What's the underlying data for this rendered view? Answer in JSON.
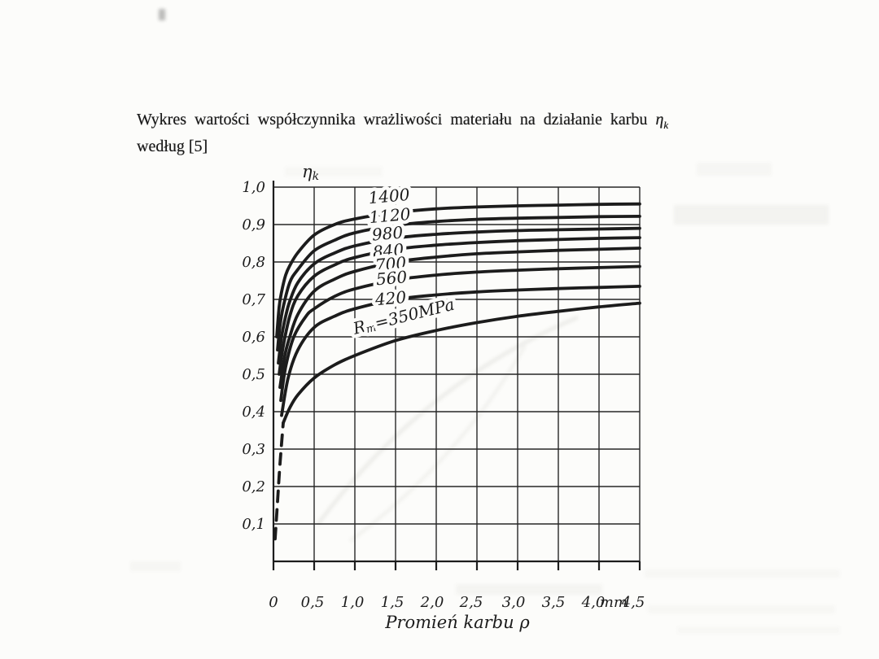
{
  "colors": {
    "ink": "#1c1c1c",
    "grid": "#262626",
    "paper": "#fcfcfa",
    "ghost": "#bdbdb6"
  },
  "title": {
    "line1": "Wykres wartości współczynnika wrażliwości materiału na działanie karbu",
    "symbol": "η",
    "symbol_sub": "k",
    "line2": "według [5]"
  },
  "chart_data": {
    "type": "line",
    "title": "",
    "xlabel": "Promień karbu ρ",
    "ylabel": "ηk",
    "ylabel_main": "η",
    "ylabel_sub": "k",
    "x_unit": "mm",
    "xlim": [
      0,
      4.5
    ],
    "ylim": [
      0,
      1.0
    ],
    "grid": true,
    "grid_step_x": 0.5,
    "grid_step_y": 0.1,
    "legend_position": "labels-on-curves",
    "y_tick_labels": [
      {
        "text": "1,0",
        "v": 1.0
      },
      {
        "text": "0,9",
        "v": 0.9
      },
      {
        "text": "0,8",
        "v": 0.8
      },
      {
        "text": "0,7",
        "v": 0.7
      },
      {
        "text": "0,6",
        "v": 0.6
      },
      {
        "text": "0,5",
        "v": 0.5
      },
      {
        "text": "0,4",
        "v": 0.4
      },
      {
        "text": "0,3",
        "v": 0.3
      },
      {
        "text": "0,2",
        "v": 0.2
      },
      {
        "text": "0,1",
        "v": 0.1
      }
    ],
    "x_tick_labels": [
      {
        "text": "0",
        "x": 0.0
      },
      {
        "text": "0,5",
        "x": 0.48
      },
      {
        "text": "1,0",
        "x": 0.97
      },
      {
        "text": "1,5",
        "x": 1.46
      },
      {
        "text": "2,0",
        "x": 1.95
      },
      {
        "text": "2,5",
        "x": 2.43
      },
      {
        "text": "3,0",
        "x": 2.95
      },
      {
        "text": "3,5",
        "x": 3.44
      },
      {
        "text": "4,0",
        "x": 3.93
      },
      {
        "text": "mm",
        "x": 4.18
      },
      {
        "text": "4,5",
        "x": 4.42
      }
    ],
    "series": [
      {
        "name": "Rm=1400",
        "label": "1400",
        "label_at": [
          1.42,
          0.976
        ],
        "label_rotate": -5,
        "points": [
          [
            0.04,
            0.6
          ],
          [
            0.07,
            0.68
          ],
          [
            0.1,
            0.72
          ],
          [
            0.15,
            0.765
          ],
          [
            0.2,
            0.79
          ],
          [
            0.3,
            0.825
          ],
          [
            0.5,
            0.872
          ],
          [
            0.75,
            0.9
          ],
          [
            1.0,
            0.915
          ],
          [
            1.5,
            0.932
          ],
          [
            2.0,
            0.942
          ],
          [
            2.5,
            0.947
          ],
          [
            3.0,
            0.95
          ],
          [
            3.5,
            0.952
          ],
          [
            4.0,
            0.954
          ],
          [
            4.5,
            0.955
          ]
        ]
      },
      {
        "name": "Rm=1120",
        "label": "1120",
        "label_at": [
          1.43,
          0.924
        ],
        "label_rotate": -5,
        "points": [
          [
            0.05,
            0.565
          ],
          [
            0.08,
            0.63
          ],
          [
            0.12,
            0.68
          ],
          [
            0.2,
            0.745
          ],
          [
            0.3,
            0.78
          ],
          [
            0.5,
            0.83
          ],
          [
            0.75,
            0.858
          ],
          [
            1.0,
            0.878
          ],
          [
            1.5,
            0.898
          ],
          [
            2.0,
            0.908
          ],
          [
            2.5,
            0.914
          ],
          [
            3.0,
            0.917
          ],
          [
            3.5,
            0.919
          ],
          [
            4.0,
            0.921
          ],
          [
            4.5,
            0.922
          ]
        ]
      },
      {
        "name": "Rm=980",
        "label": "980",
        "label_at": [
          1.4,
          0.876
        ],
        "label_rotate": -5,
        "points": [
          [
            0.06,
            0.53
          ],
          [
            0.1,
            0.6
          ],
          [
            0.15,
            0.655
          ],
          [
            0.2,
            0.695
          ],
          [
            0.3,
            0.745
          ],
          [
            0.5,
            0.795
          ],
          [
            0.75,
            0.824
          ],
          [
            1.0,
            0.843
          ],
          [
            1.5,
            0.864
          ],
          [
            2.0,
            0.874
          ],
          [
            2.5,
            0.88
          ],
          [
            3.0,
            0.884
          ],
          [
            3.5,
            0.886
          ],
          [
            4.0,
            0.888
          ],
          [
            4.5,
            0.89
          ]
        ]
      },
      {
        "name": "Rm=840",
        "label": "840",
        "label_at": [
          1.41,
          0.83
        ],
        "label_rotate": -5,
        "points": [
          [
            0.07,
            0.5
          ],
          [
            0.12,
            0.575
          ],
          [
            0.2,
            0.655
          ],
          [
            0.3,
            0.71
          ],
          [
            0.5,
            0.762
          ],
          [
            0.75,
            0.792
          ],
          [
            1.0,
            0.812
          ],
          [
            1.5,
            0.834
          ],
          [
            2.0,
            0.845
          ],
          [
            2.5,
            0.852
          ],
          [
            3.0,
            0.857
          ],
          [
            3.5,
            0.86
          ],
          [
            4.0,
            0.863
          ],
          [
            4.5,
            0.865
          ]
        ]
      },
      {
        "name": "Rm=700",
        "label": "700",
        "label_at": [
          1.44,
          0.795
        ],
        "label_rotate": -5,
        "points": [
          [
            0.08,
            0.465
          ],
          [
            0.14,
            0.55
          ],
          [
            0.2,
            0.6
          ],
          [
            0.3,
            0.66
          ],
          [
            0.5,
            0.722
          ],
          [
            0.75,
            0.754
          ],
          [
            1.0,
            0.775
          ],
          [
            1.5,
            0.8
          ],
          [
            2.0,
            0.813
          ],
          [
            2.5,
            0.822
          ],
          [
            3.0,
            0.827
          ],
          [
            3.5,
            0.831
          ],
          [
            4.0,
            0.834
          ],
          [
            4.5,
            0.837
          ]
        ]
      },
      {
        "name": "Rm=560",
        "label": "560",
        "label_at": [
          1.45,
          0.757
        ],
        "label_rotate": -5,
        "points": [
          [
            0.09,
            0.43
          ],
          [
            0.15,
            0.52
          ],
          [
            0.25,
            0.6
          ],
          [
            0.4,
            0.655
          ],
          [
            0.5,
            0.675
          ],
          [
            0.75,
            0.708
          ],
          [
            1.0,
            0.728
          ],
          [
            1.5,
            0.752
          ],
          [
            2.0,
            0.765
          ],
          [
            2.5,
            0.773
          ],
          [
            3.0,
            0.778
          ],
          [
            3.5,
            0.782
          ],
          [
            4.0,
            0.785
          ],
          [
            4.5,
            0.788
          ]
        ]
      },
      {
        "name": "Rm=420",
        "label": "420",
        "label_at": [
          1.44,
          0.703
        ],
        "label_rotate": -5,
        "points": [
          [
            0.1,
            0.39
          ],
          [
            0.18,
            0.49
          ],
          [
            0.3,
            0.565
          ],
          [
            0.5,
            0.625
          ],
          [
            0.75,
            0.655
          ],
          [
            1.0,
            0.675
          ],
          [
            1.5,
            0.7
          ],
          [
            2.0,
            0.712
          ],
          [
            2.5,
            0.72
          ],
          [
            3.0,
            0.725
          ],
          [
            3.5,
            0.729
          ],
          [
            4.0,
            0.732
          ],
          [
            4.5,
            0.735
          ]
        ]
      },
      {
        "name": "Rm=350MPa",
        "label_rm_main": "R",
        "label_rm_sub": "m",
        "label_rm_rest": "=350MPa",
        "label_at": [
          1.6,
          0.655
        ],
        "label_rotate": -14,
        "lead_dashed": [
          [
            0.02,
            0.06
          ],
          [
            0.05,
            0.16
          ],
          [
            0.08,
            0.26
          ],
          [
            0.12,
            0.37
          ]
        ],
        "points": [
          [
            0.12,
            0.37
          ],
          [
            0.2,
            0.41
          ],
          [
            0.3,
            0.445
          ],
          [
            0.5,
            0.49
          ],
          [
            0.75,
            0.525
          ],
          [
            1.0,
            0.55
          ],
          [
            1.5,
            0.59
          ],
          [
            2.0,
            0.617
          ],
          [
            2.5,
            0.638
          ],
          [
            3.0,
            0.655
          ],
          [
            3.5,
            0.668
          ],
          [
            4.0,
            0.68
          ],
          [
            4.5,
            0.69
          ]
        ]
      }
    ]
  }
}
